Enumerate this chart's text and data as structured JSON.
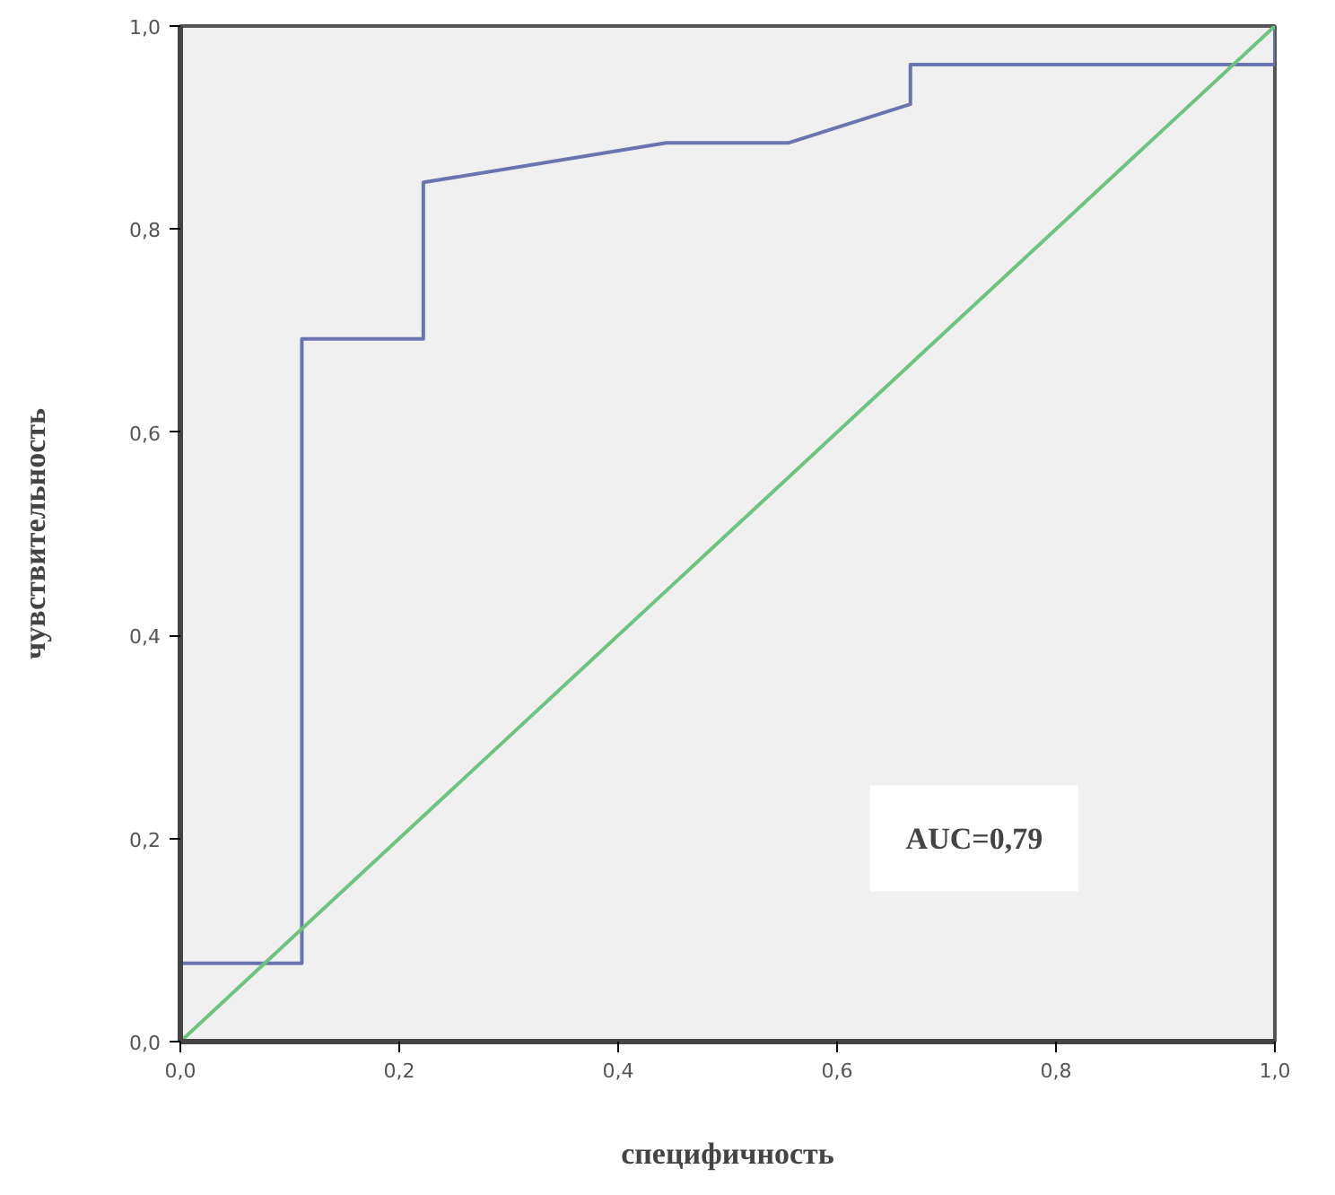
{
  "chart_data": {
    "type": "line",
    "xlabel": "специфичность",
    "ylabel": "чувствительность",
    "series": [
      {
        "color": "#6a75b0",
        "x": [
          0,
          0,
          0.111,
          0.111,
          0.222,
          0.222,
          0.444,
          0.556,
          0.667,
          0.667,
          1,
          1
        ],
        "values": [
          0,
          0.077,
          0.077,
          0.692,
          0.692,
          0.846,
          0.885,
          0.885,
          0.923,
          0.962,
          0.962,
          1
        ]
      },
      {
        "color": "#6cc47e",
        "x": [
          0,
          1
        ],
        "values": [
          0,
          1
        ]
      }
    ],
    "xlim": [
      0,
      1
    ],
    "ylim": [
      0,
      1
    ],
    "xticks": [
      {
        "value": 0,
        "label": "0,0"
      },
      {
        "value": 0.2,
        "label": "0,2"
      },
      {
        "value": 0.4,
        "label": "0,4"
      },
      {
        "value": 0.6,
        "label": "0,6"
      },
      {
        "value": 0.8,
        "label": "0,8"
      },
      {
        "value": 1,
        "label": "1,0"
      }
    ],
    "yticks": [
      {
        "value": 0,
        "label": "0,0"
      },
      {
        "value": 0.2,
        "label": "0,2"
      },
      {
        "value": 0.4,
        "label": "0,4"
      },
      {
        "value": 0.6,
        "label": "0,6"
      },
      {
        "value": 0.8,
        "label": "0,8"
      },
      {
        "value": 1,
        "label": "1,0"
      }
    ],
    "annotations": [
      "AUC=0,79"
    ],
    "grid": false,
    "marker": "none",
    "line_style": "solid"
  }
}
